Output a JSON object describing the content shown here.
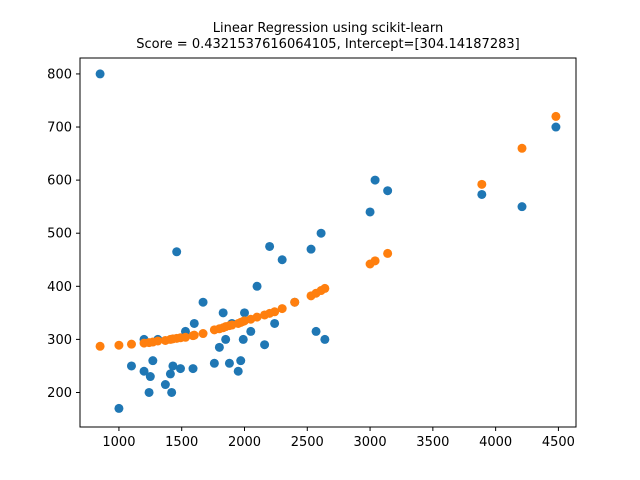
{
  "chart_data": {
    "type": "scatter",
    "title": "Linear Regression using scikit-learn",
    "subtitle": "Score = 0.4321537616064105, Intercept=[304.14187283]",
    "xlabel": "",
    "ylabel": "",
    "xlim": [
      690,
      4640
    ],
    "ylim": [
      135,
      830
    ],
    "x_ticks": [
      1000,
      1500,
      2000,
      2500,
      3000,
      3500,
      4000,
      4500
    ],
    "y_ticks": [
      200,
      300,
      400,
      500,
      600,
      700,
      800
    ],
    "grid": false,
    "series": [
      {
        "color": "#1f77b4",
        "points": [
          [
            850,
            800
          ],
          [
            1000,
            170
          ],
          [
            1100,
            250
          ],
          [
            1200,
            300
          ],
          [
            1200,
            240
          ],
          [
            1240,
            200
          ],
          [
            1250,
            230
          ],
          [
            1270,
            260
          ],
          [
            1310,
            300
          ],
          [
            1370,
            215
          ],
          [
            1410,
            235
          ],
          [
            1420,
            200
          ],
          [
            1430,
            250
          ],
          [
            1460,
            465
          ],
          [
            1490,
            245
          ],
          [
            1530,
            315
          ],
          [
            1590,
            245
          ],
          [
            1600,
            330
          ],
          [
            1670,
            370
          ],
          [
            1760,
            255
          ],
          [
            1800,
            285
          ],
          [
            1830,
            350
          ],
          [
            1850,
            300
          ],
          [
            1880,
            255
          ],
          [
            1900,
            330
          ],
          [
            1950,
            240
          ],
          [
            1970,
            260
          ],
          [
            1990,
            300
          ],
          [
            2000,
            350
          ],
          [
            2050,
            315
          ],
          [
            2100,
            400
          ],
          [
            2160,
            290
          ],
          [
            2200,
            475
          ],
          [
            2240,
            330
          ],
          [
            2300,
            450
          ],
          [
            2400,
            370
          ],
          [
            2530,
            470
          ],
          [
            2570,
            315
          ],
          [
            2610,
            500
          ],
          [
            2640,
            300
          ],
          [
            3000,
            540
          ],
          [
            3040,
            600
          ],
          [
            3140,
            580
          ],
          [
            3890,
            573
          ],
          [
            4210,
            550
          ],
          [
            4480,
            700
          ]
        ]
      },
      {
        "color": "#ff7f0e",
        "points": [
          [
            850,
            287
          ],
          [
            1000,
            289
          ],
          [
            1100,
            291
          ],
          [
            1200,
            293
          ],
          [
            1240,
            294
          ],
          [
            1270,
            295
          ],
          [
            1310,
            297
          ],
          [
            1370,
            298
          ],
          [
            1410,
            300
          ],
          [
            1430,
            301
          ],
          [
            1460,
            302
          ],
          [
            1490,
            303
          ],
          [
            1530,
            304
          ],
          [
            1590,
            307
          ],
          [
            1600,
            308
          ],
          [
            1670,
            311
          ],
          [
            1760,
            318
          ],
          [
            1800,
            320
          ],
          [
            1830,
            322
          ],
          [
            1850,
            324
          ],
          [
            1880,
            326
          ],
          [
            1900,
            327
          ],
          [
            1950,
            330
          ],
          [
            1970,
            332
          ],
          [
            1990,
            334
          ],
          [
            2000,
            335
          ],
          [
            2050,
            338
          ],
          [
            2100,
            342
          ],
          [
            2160,
            346
          ],
          [
            2200,
            349
          ],
          [
            2240,
            352
          ],
          [
            2300,
            358
          ],
          [
            2400,
            370
          ],
          [
            2530,
            382
          ],
          [
            2570,
            387
          ],
          [
            2610,
            392
          ],
          [
            2640,
            396
          ],
          [
            3000,
            442
          ],
          [
            3040,
            448
          ],
          [
            3140,
            462
          ],
          [
            3890,
            592
          ],
          [
            4210,
            660
          ],
          [
            4480,
            720
          ]
        ]
      }
    ]
  }
}
